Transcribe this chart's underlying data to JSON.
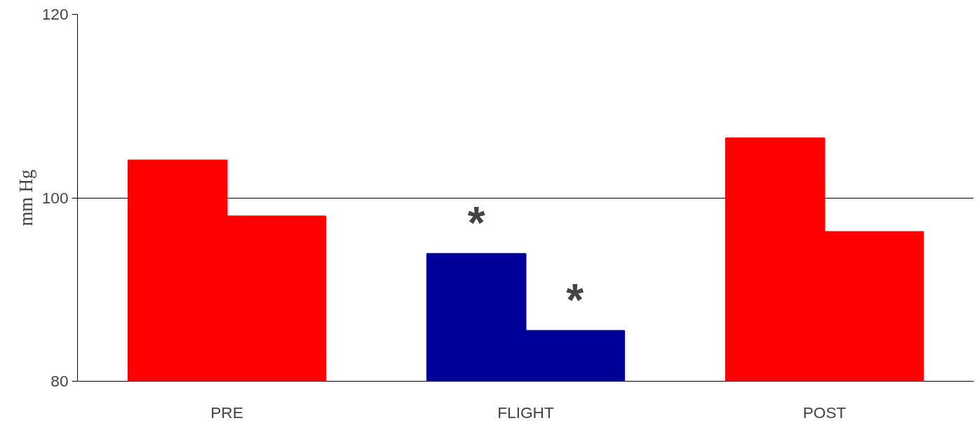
{
  "chart_data": {
    "type": "bar",
    "ylabel": "mm Hg",
    "categories": [
      "PRE",
      "FLIGHT",
      "POST"
    ],
    "series": [
      {
        "colors": [
          "#ff0000",
          "#000099",
          "#ff0000"
        ],
        "values": [
          104.1,
          93.9,
          106.5
        ]
      },
      {
        "colors": [
          "#ff0000",
          "#000099",
          "#ff0000"
        ],
        "values": [
          98.0,
          85.5,
          96.3
        ]
      }
    ],
    "ylim": [
      80,
      120
    ],
    "yticks": [
      80,
      100,
      120
    ],
    "grid": "y",
    "annotations": [
      "*",
      "*"
    ]
  }
}
